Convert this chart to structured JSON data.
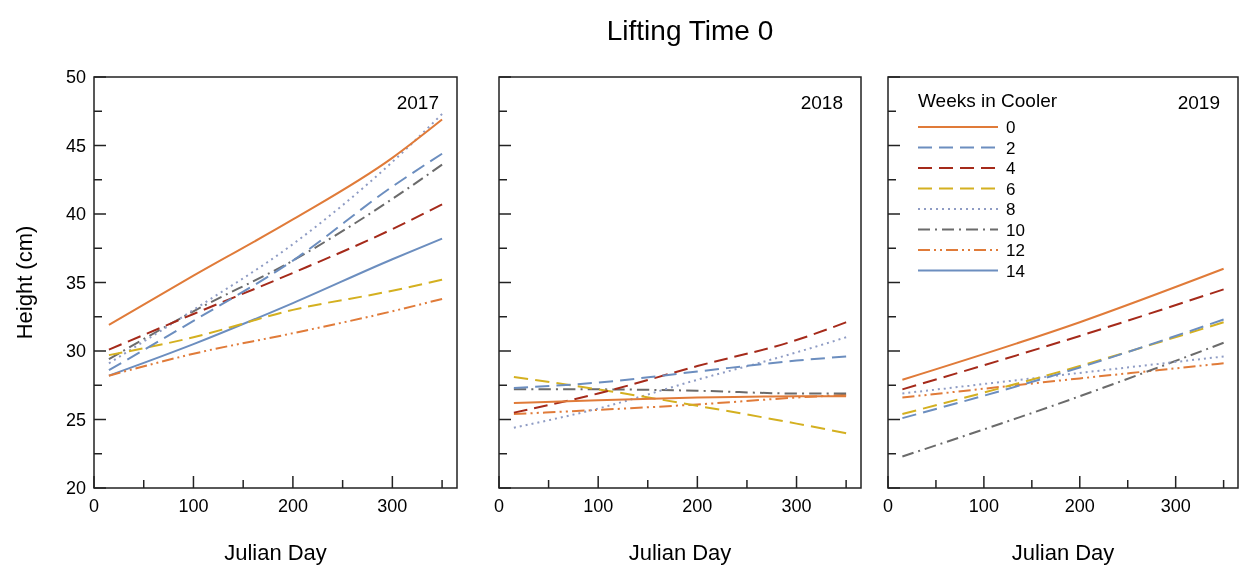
{
  "chart_data": [
    {
      "type": "line",
      "xlabel": "Julian Day",
      "ylabel": "Height (cm)",
      "annotations": [
        "2017"
      ],
      "xlim": [
        0,
        365
      ],
      "xticks": [
        0,
        {
          "value": 50,
          "label": null
        },
        100,
        {
          "value": 150,
          "label": null
        },
        200,
        {
          "value": 250,
          "label": null
        },
        300,
        {
          "value": 350,
          "label": null
        }
      ],
      "ylim": [
        20,
        50
      ],
      "yticks": [
        20,
        {
          "value": 22.5,
          "label": null
        },
        25,
        {
          "value": 27.5,
          "label": null
        },
        30,
        {
          "value": 32.5,
          "label": null
        },
        35,
        {
          "value": 37.5,
          "label": null
        },
        40,
        {
          "value": 42.5,
          "label": null
        },
        45,
        {
          "value": 47.5,
          "label": null
        },
        50
      ],
      "x": [
        15,
        100,
        200,
        300,
        350
      ],
      "series": [
        {
          "color": "#e07b39",
          "line_style": "solid",
          "values": [
            31.9,
            35.5,
            39.6,
            44.1,
            46.9
          ]
        },
        {
          "color": "#6c8ebf",
          "line_style": "dashed",
          "values": [
            28.6,
            32.2,
            36.6,
            42.0,
            44.4
          ]
        },
        {
          "color": "#a52a1a",
          "line_style": "dashed",
          "values": [
            30.1,
            32.7,
            35.7,
            38.9,
            40.7
          ]
        },
        {
          "color": "#d4b020",
          "line_style": "dashed",
          "values": [
            29.7,
            31.0,
            33.0,
            34.4,
            35.2
          ]
        },
        {
          "color": "#8f9cc4",
          "line_style": "dotted",
          "values": [
            29.1,
            33.0,
            37.8,
            43.8,
            47.3
          ]
        },
        {
          "color": "#6b6b6b",
          "line_style": "dashdot",
          "values": [
            29.4,
            32.9,
            36.6,
            41.1,
            43.6
          ]
        },
        {
          "color": "#e07b39",
          "line_style": "dashdotdot",
          "values": [
            28.2,
            29.8,
            31.3,
            32.9,
            33.8
          ]
        },
        {
          "color": "#6c8ebf",
          "line_style": "solid",
          "values": [
            28.2,
            30.5,
            33.5,
            36.7,
            38.2
          ]
        }
      ]
    },
    {
      "type": "line",
      "title": "Lifting Time 0",
      "xlabel": "Julian Day",
      "annotations": [
        "2018"
      ],
      "tick_labels": "x",
      "xlim": [
        0,
        365
      ],
      "xticks": [
        0,
        {
          "value": 50,
          "label": null
        },
        100,
        {
          "value": 150,
          "label": null
        },
        200,
        {
          "value": 250,
          "label": null
        },
        300,
        {
          "value": 350,
          "label": null
        }
      ],
      "ylim": [
        20,
        50
      ],
      "yticks": [
        20,
        {
          "value": 22.5,
          "label": null
        },
        25,
        {
          "value": 27.5,
          "label": null
        },
        30,
        {
          "value": 32.5,
          "label": null
        },
        35,
        {
          "value": 37.5,
          "label": null
        },
        40,
        {
          "value": 42.5,
          "label": null
        },
        45,
        {
          "value": 47.5,
          "label": null
        },
        50
      ],
      "x": [
        15,
        100,
        200,
        300,
        350
      ],
      "series": [
        {
          "color": "#e07b39",
          "line_style": "solid",
          "values": [
            26.2,
            26.4,
            26.6,
            26.7,
            26.7
          ]
        },
        {
          "color": "#6c8ebf",
          "line_style": "dashed",
          "values": [
            27.3,
            27.7,
            28.5,
            29.3,
            29.6
          ]
        },
        {
          "color": "#a52a1a",
          "line_style": "dashed",
          "values": [
            25.5,
            26.9,
            28.9,
            30.8,
            32.1
          ]
        },
        {
          "color": "#d4b020",
          "line_style": "dashed",
          "values": [
            28.1,
            27.2,
            26.0,
            24.7,
            24.0
          ]
        },
        {
          "color": "#8f9cc4",
          "line_style": "dotted",
          "values": [
            24.4,
            25.8,
            27.9,
            29.9,
            31.0
          ]
        },
        {
          "color": "#6b6b6b",
          "line_style": "dashdot",
          "values": [
            27.2,
            27.2,
            27.1,
            26.9,
            26.9
          ]
        },
        {
          "color": "#e07b39",
          "line_style": "dashdotdot",
          "values": [
            25.4,
            25.7,
            26.1,
            26.6,
            26.8
          ]
        },
        {
          "color": "#6c8ebf",
          "line_style": "solid",
          "values": [
            null,
            null,
            null,
            null,
            null
          ]
        }
      ]
    },
    {
      "type": "line",
      "xlabel": "Julian Day",
      "annotations": [
        "2019"
      ],
      "tick_labels": "x",
      "legend": "top left",
      "legend_title": "Weeks in Cooler",
      "xlim": [
        0,
        365
      ],
      "xticks": [
        0,
        {
          "value": 50,
          "label": null
        },
        100,
        {
          "value": 150,
          "label": null
        },
        200,
        {
          "value": 250,
          "label": null
        },
        300,
        {
          "value": 350,
          "label": null
        }
      ],
      "ylim": [
        20,
        50
      ],
      "yticks": [
        20,
        {
          "value": 22.5,
          "label": null
        },
        25,
        {
          "value": 27.5,
          "label": null
        },
        30,
        {
          "value": 32.5,
          "label": null
        },
        35,
        {
          "value": 37.5,
          "label": null
        },
        40,
        {
          "value": 42.5,
          "label": null
        },
        45,
        {
          "value": 47.5,
          "label": null
        },
        50
      ],
      "x": [
        15,
        200,
        350
      ],
      "series": [
        {
          "name": "0",
          "color": "#e07b39",
          "line_style": "solid",
          "values": [
            27.9,
            32.1,
            36.0
          ]
        },
        {
          "name": "2",
          "color": "#6c8ebf",
          "line_style": "dashed",
          "values": [
            25.1,
            28.8,
            32.3
          ]
        },
        {
          "name": "4",
          "color": "#a52a1a",
          "line_style": "dashed",
          "values": [
            27.2,
            31.1,
            34.5
          ]
        },
        {
          "name": "6",
          "color": "#d4b020",
          "line_style": "dashed",
          "values": [
            25.4,
            28.9,
            32.1
          ]
        },
        {
          "name": "8",
          "color": "#8f9cc4",
          "line_style": "dotted",
          "values": [
            26.9,
            28.4,
            29.6
          ]
        },
        {
          "name": "10",
          "color": "#6b6b6b",
          "line_style": "dashdot",
          "values": [
            22.3,
            26.7,
            30.6
          ]
        },
        {
          "name": "12",
          "color": "#e07b39",
          "line_style": "dashdotdot",
          "values": [
            26.6,
            28.0,
            29.1
          ]
        },
        {
          "name": "14",
          "color": "#6c8ebf",
          "line_style": "solid",
          "values": [
            null,
            null,
            null
          ]
        }
      ]
    }
  ]
}
